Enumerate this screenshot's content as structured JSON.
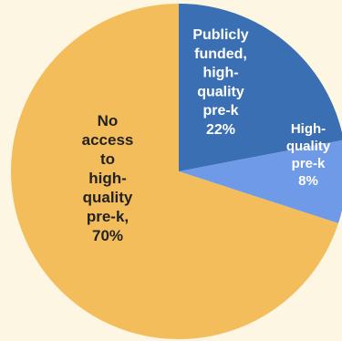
{
  "chart_data": {
    "type": "pie",
    "start_angle_deg": 0,
    "direction": "clockwise",
    "slices": [
      {
        "label_lines": [
          "Publicly",
          "funded,",
          "high-",
          "quality",
          "pre-k",
          "22%"
        ],
        "value": 22,
        "color": "#3a6fb3",
        "text_color": "#ffffff"
      },
      {
        "label_lines": [
          "High-",
          "quality",
          "pre-k",
          "8%"
        ],
        "value": 8,
        "color": "#6f9ae8",
        "text_color": "#ffffff"
      },
      {
        "label_lines": [
          "No",
          "access",
          "to",
          "high-",
          "quality",
          "pre-k,",
          "70%"
        ],
        "value": 70,
        "color": "#f4bd5c",
        "text_color": "#222222"
      }
    ]
  }
}
